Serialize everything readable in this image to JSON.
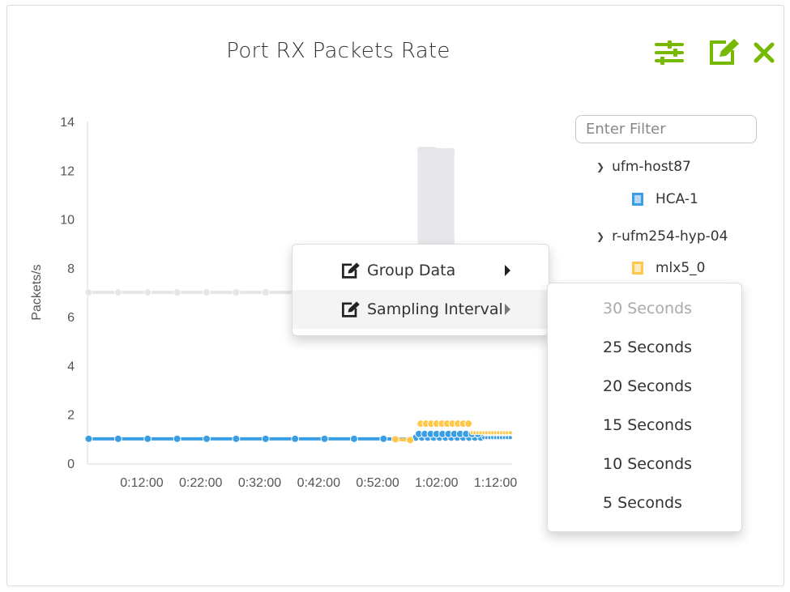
{
  "widget": {
    "title": "Port RX Packets Rate",
    "toolbar": [
      {
        "icon": "sliders-icon",
        "name": "settings"
      },
      {
        "icon": "edit-icon",
        "name": "edit"
      },
      {
        "icon": "close-icon",
        "name": "close"
      }
    ],
    "accent_color": "#76b900"
  },
  "legend": {
    "filter_placeholder": "Enter Filter",
    "groups": [
      {
        "name": "ufm-host87",
        "items": [
          {
            "label": "HCA-1",
            "color": "#3a9ee4",
            "fill": "#b7d9f5"
          }
        ]
      },
      {
        "name": "r-ufm254-hyp-04",
        "items": [
          {
            "label": "mlx5_0",
            "color": "#ffc84a",
            "fill": "#ffebbf"
          }
        ]
      }
    ]
  },
  "context_menu": {
    "items": [
      {
        "label": "Group Data",
        "icon": "edit-icon",
        "has_submenu": true
      },
      {
        "label": "Sampling Interval",
        "icon": "edit-icon",
        "has_submenu": true,
        "active": true
      }
    ],
    "submenu": {
      "items": [
        {
          "label": "30 Seconds",
          "disabled": true
        },
        {
          "label": "25 Seconds"
        },
        {
          "label": "20 Seconds"
        },
        {
          "label": "15 Seconds"
        },
        {
          "label": "10 Seconds"
        },
        {
          "label": "5 Seconds"
        }
      ]
    }
  },
  "chart_data": {
    "type": "line",
    "title": "Port RX Packets Rate",
    "xlabel": "",
    "ylabel": "Packets/s",
    "ylim": [
      0,
      14
    ],
    "yticks": [
      "0",
      "2",
      "4",
      "6",
      "8",
      "10",
      "12",
      "14"
    ],
    "xticks": [
      {
        "t": 12,
        "label": "0:12:00"
      },
      {
        "t": 22,
        "label": "0:22:00"
      },
      {
        "t": 32,
        "label": "0:32:00"
      },
      {
        "t": 42,
        "label": "0:42:00"
      },
      {
        "t": 52,
        "label": "0:52:00"
      },
      {
        "t": 62,
        "label": "1:02:00"
      },
      {
        "t": 72,
        "label": "1:12:00"
      }
    ],
    "xlim_minutes": [
      2.8,
      74.8
    ],
    "grid": false,
    "series": [
      {
        "color": "#e6e6ea",
        "points": [
          [
            3,
            7
          ],
          [
            8,
            7
          ],
          [
            13,
            7
          ],
          [
            18,
            7
          ],
          [
            23,
            7
          ],
          [
            28,
            7
          ],
          [
            33,
            7
          ],
          [
            38,
            7
          ],
          [
            43,
            7
          ],
          [
            48,
            7
          ],
          [
            53,
            7
          ],
          [
            58,
            7
          ]
        ],
        "spikes": [
          [
            59.2,
            12.85
          ],
          [
            59.8,
            12.85
          ],
          [
            60.4,
            12.85
          ],
          [
            61,
            12.85
          ],
          [
            61.6,
            12.85
          ],
          [
            62.2,
            12.8
          ],
          [
            62.8,
            12.8
          ],
          [
            63.4,
            12.8
          ],
          [
            64,
            12.8
          ],
          [
            64.6,
            12.8
          ]
        ]
      },
      {
        "name": "HCA-1",
        "color": "#3a9ee4",
        "points": [
          [
            3,
            1
          ],
          [
            8,
            1
          ],
          [
            13,
            1
          ],
          [
            18,
            1
          ],
          [
            23,
            1
          ],
          [
            28,
            1
          ],
          [
            33,
            1
          ],
          [
            38,
            1
          ],
          [
            43,
            1
          ],
          [
            48,
            1
          ],
          [
            53,
            1
          ],
          [
            57.5,
            0.98
          ]
        ],
        "dense_upper": [
          [
            59,
            1.2
          ],
          [
            60,
            1.2
          ],
          [
            61,
            1.2
          ],
          [
            62,
            1.2
          ],
          [
            63,
            1.2
          ],
          [
            64,
            1.2
          ],
          [
            65,
            1.2
          ],
          [
            66,
            1.2
          ],
          [
            67,
            1.2
          ],
          [
            68,
            1.2
          ],
          [
            69,
            1.2
          ]
        ],
        "dense_lower": [
          [
            58.5,
            1.05
          ],
          [
            59.5,
            1.05
          ],
          [
            60.5,
            1.05
          ],
          [
            61.5,
            1.05
          ],
          [
            62.5,
            1.05
          ],
          [
            63.5,
            1.05
          ],
          [
            64.5,
            1.05
          ],
          [
            65.5,
            1.05
          ],
          [
            66.5,
            1.05
          ],
          [
            67.5,
            1.05
          ],
          [
            68.5,
            1.05
          ],
          [
            69.5,
            1.05
          ],
          [
            70,
            1.05
          ],
          [
            70.5,
            1.05
          ],
          [
            71,
            1.05
          ],
          [
            71.5,
            1.05
          ],
          [
            72,
            1.05
          ],
          [
            72.5,
            1.05
          ],
          [
            73,
            1.05
          ],
          [
            73.5,
            1.05
          ],
          [
            74,
            1.05
          ],
          [
            74.5,
            1.05
          ]
        ]
      },
      {
        "name": "mlx5_0",
        "color": "#ffc84a",
        "points": [
          [
            55,
            0.98
          ],
          [
            57.5,
            0.95
          ]
        ],
        "dense_upper": [
          [
            59.3,
            1.62
          ],
          [
            60.2,
            1.62
          ],
          [
            61.1,
            1.62
          ],
          [
            62,
            1.62
          ],
          [
            62.9,
            1.62
          ],
          [
            63.8,
            1.62
          ],
          [
            64.7,
            1.62
          ],
          [
            65.6,
            1.62
          ],
          [
            66.5,
            1.62
          ],
          [
            67.4,
            1.62
          ]
        ],
        "dense_lower": [
          [
            68,
            1.25
          ],
          [
            68.5,
            1.25
          ],
          [
            69,
            1.25
          ],
          [
            69.5,
            1.25
          ],
          [
            70,
            1.25
          ],
          [
            70.5,
            1.25
          ],
          [
            71,
            1.25
          ],
          [
            71.5,
            1.25
          ],
          [
            72,
            1.25
          ],
          [
            72.5,
            1.25
          ],
          [
            73,
            1.25
          ],
          [
            73.5,
            1.25
          ],
          [
            74,
            1.25
          ],
          [
            74.5,
            1.25
          ]
        ]
      }
    ]
  }
}
